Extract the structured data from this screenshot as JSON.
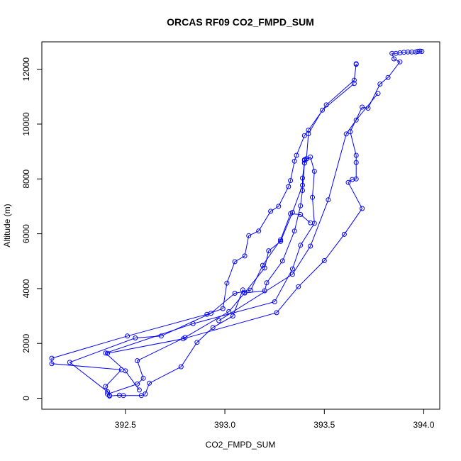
{
  "chart_data": {
    "type": "line",
    "title": "ORCAS RF09 CO2_FMPD_SUM",
    "xlabel": "CO2_FMPD_SUM",
    "ylabel": "Altitude (m)",
    "xlim": [
      392.08,
      394.08
    ],
    "ylim": [
      -400,
      13000
    ],
    "xticks": [
      392.5,
      393.0,
      393.5,
      394.0
    ],
    "xtick_labels": [
      "392.5",
      "393.0",
      "393.5",
      "394.0"
    ],
    "yticks": [
      0,
      2000,
      4000,
      6000,
      8000,
      10000,
      12000
    ],
    "ytick_labels": [
      "0",
      "2000",
      "4000",
      "6000",
      "8000",
      "10000",
      "12000"
    ],
    "grid": false,
    "series": [
      {
        "color": "#0000ff",
        "marker": "open-circle",
        "points": [
          [
            393.66,
            12200
          ],
          [
            393.66,
            12180
          ],
          [
            393.65,
            11600
          ],
          [
            393.51,
            10700
          ],
          [
            393.42,
            9780
          ],
          [
            393.4,
            9580
          ],
          [
            393.36,
            8860
          ],
          [
            393.35,
            8650
          ],
          [
            393.33,
            7940
          ],
          [
            393.32,
            7720
          ],
          [
            393.27,
            7000
          ],
          [
            393.23,
            6820
          ],
          [
            393.17,
            6100
          ],
          [
            393.12,
            5930
          ],
          [
            393.1,
            5190
          ],
          [
            393.05,
            4980
          ],
          [
            393.01,
            4200
          ],
          [
            392.99,
            3270
          ],
          [
            392.91,
            3060
          ],
          [
            392.51,
            2270
          ],
          [
            392.13,
            1460
          ],
          [
            392.13,
            1260
          ],
          [
            392.48,
            1040
          ],
          [
            392.4,
            430
          ],
          [
            392.42,
            80
          ],
          [
            392.47,
            110
          ],
          [
            392.49,
            100
          ],
          [
            392.58,
            100
          ],
          [
            392.6,
            160
          ],
          [
            392.62,
            550
          ],
          [
            392.78,
            1150
          ],
          [
            392.86,
            2040
          ],
          [
            392.94,
            2580
          ],
          [
            393.04,
            3000
          ],
          [
            393.09,
            3950
          ],
          [
            393.1,
            3840
          ],
          [
            393.2,
            3920
          ],
          [
            393.21,
            4210
          ],
          [
            393.29,
            5010
          ],
          [
            393.35,
            6100
          ],
          [
            393.38,
            7020
          ],
          [
            393.39,
            7580
          ],
          [
            393.4,
            8580
          ],
          [
            393.4,
            8700
          ],
          [
            393.4,
            8680
          ],
          [
            393.43,
            8800
          ],
          [
            393.45,
            8280
          ],
          [
            393.44,
            7330
          ],
          [
            393.45,
            6380
          ],
          [
            393.38,
            5580
          ],
          [
            393.34,
            4720
          ],
          [
            393.25,
            3520
          ],
          [
            392.84,
            2720
          ],
          [
            392.4,
            1650
          ],
          [
            392.5,
            1000
          ],
          [
            392.57,
            300
          ]
        ]
      },
      {
        "color": "#0000ff",
        "marker": "open-circle",
        "points": [
          [
            393.65,
            11480
          ],
          [
            393.49,
            10510
          ],
          [
            393.42,
            9650
          ],
          [
            393.41,
            8740
          ],
          [
            393.41,
            8730
          ],
          [
            393.4,
            8580
          ],
          [
            393.39,
            8030
          ],
          [
            393.39,
            7770
          ],
          [
            393.34,
            6780
          ],
          [
            393.28,
            5720
          ],
          [
            393.22,
            5380
          ],
          [
            393.2,
            4750
          ],
          [
            393.1,
            3850
          ],
          [
            393.02,
            3160
          ],
          [
            392.8,
            2220
          ],
          [
            392.56,
            1370
          ],
          [
            392.59,
            730
          ],
          [
            392.56,
            520
          ],
          [
            392.41,
            150
          ]
        ]
      },
      {
        "color": "#0000ff",
        "marker": "open-circle",
        "points": [
          [
            393.43,
            6400
          ],
          [
            393.38,
            6700
          ],
          [
            393.33,
            6730
          ],
          [
            393.28,
            5780
          ],
          [
            393.19,
            4850
          ],
          [
            393.13,
            3940
          ],
          [
            393.05,
            3830
          ],
          [
            392.93,
            3100
          ],
          [
            392.68,
            2270
          ],
          [
            392.55,
            2200
          ],
          [
            392.22,
            1310
          ],
          [
            392.41,
            240
          ],
          [
            392.42,
            100
          ]
        ]
      },
      {
        "color": "#0000ff",
        "marker": "open-circle",
        "points": [
          [
            393.99,
            12650
          ],
          [
            393.98,
            12660
          ],
          [
            393.97,
            12650
          ],
          [
            393.96,
            12630
          ],
          [
            393.94,
            12630
          ],
          [
            393.92,
            12630
          ],
          [
            393.9,
            12620
          ],
          [
            393.88,
            12600
          ],
          [
            393.86,
            12580
          ],
          [
            393.84,
            12580
          ],
          [
            393.85,
            12380
          ],
          [
            393.88,
            12270
          ],
          [
            393.82,
            11700
          ],
          [
            393.78,
            11460
          ],
          [
            393.72,
            10580
          ],
          [
            393.69,
            10620
          ],
          [
            393.63,
            9720
          ],
          [
            393.66,
            8860
          ],
          [
            393.66,
            8600
          ],
          [
            393.66,
            8000
          ],
          [
            393.64,
            7980
          ],
          [
            393.62,
            7870
          ],
          [
            393.69,
            6920
          ],
          [
            393.6,
            5980
          ],
          [
            393.5,
            5020
          ],
          [
            393.37,
            4070
          ],
          [
            393.26,
            3120
          ],
          [
            392.79,
            2170
          ],
          [
            392.41,
            1640
          ]
        ]
      },
      {
        "color": "#0000ff",
        "marker": "open-circle",
        "points": [
          [
            393.77,
            11120
          ],
          [
            393.66,
            10150
          ],
          [
            393.61,
            9640
          ],
          [
            393.52,
            7240
          ],
          [
            393.43,
            5550
          ],
          [
            393.34,
            4520
          ],
          [
            392.97,
            2830
          ]
        ]
      }
    ]
  }
}
